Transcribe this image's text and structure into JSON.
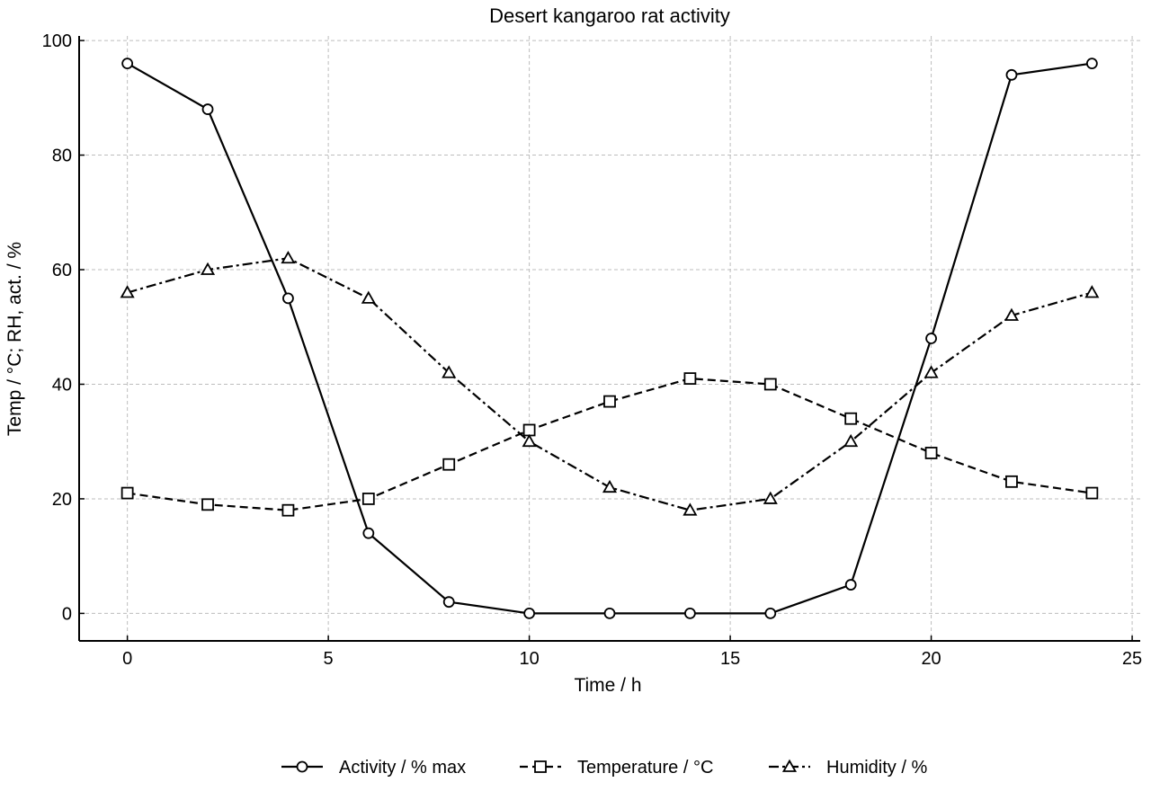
{
  "chart_data": {
    "type": "line",
    "title": "Desert kangaroo rat activity",
    "xlabel": "Time / h",
    "ylabel": "Temp / °C; RH, act. / %",
    "xlim": [
      -1.2,
      25.2
    ],
    "ylim": [
      -4.8,
      100.8
    ],
    "xticks": [
      0,
      5,
      10,
      15,
      20,
      25
    ],
    "yticks": [
      0,
      20,
      40,
      60,
      80,
      100
    ],
    "grid": true,
    "legend_position": "bottom-center",
    "x": [
      0,
      2,
      4,
      6,
      8,
      10,
      12,
      14,
      16,
      18,
      20,
      22,
      24
    ],
    "series": [
      {
        "name": "Activity / % max",
        "marker": "circle",
        "line_style": "solid",
        "color": "#000000",
        "values": [
          96,
          88,
          55,
          14,
          2,
          0,
          0,
          0,
          0,
          5,
          48,
          94,
          96
        ]
      },
      {
        "name": "Temperature / °C",
        "marker": "square",
        "line_style": "dashed",
        "color": "#000000",
        "values": [
          21,
          19,
          18,
          20,
          26,
          32,
          37,
          41,
          40,
          34,
          28,
          23,
          21
        ]
      },
      {
        "name": "Humidity / %",
        "marker": "triangle",
        "line_style": "dashdot",
        "color": "#000000",
        "values": [
          56,
          60,
          62,
          55,
          42,
          30,
          22,
          18,
          20,
          30,
          42,
          52,
          56
        ]
      }
    ]
  }
}
